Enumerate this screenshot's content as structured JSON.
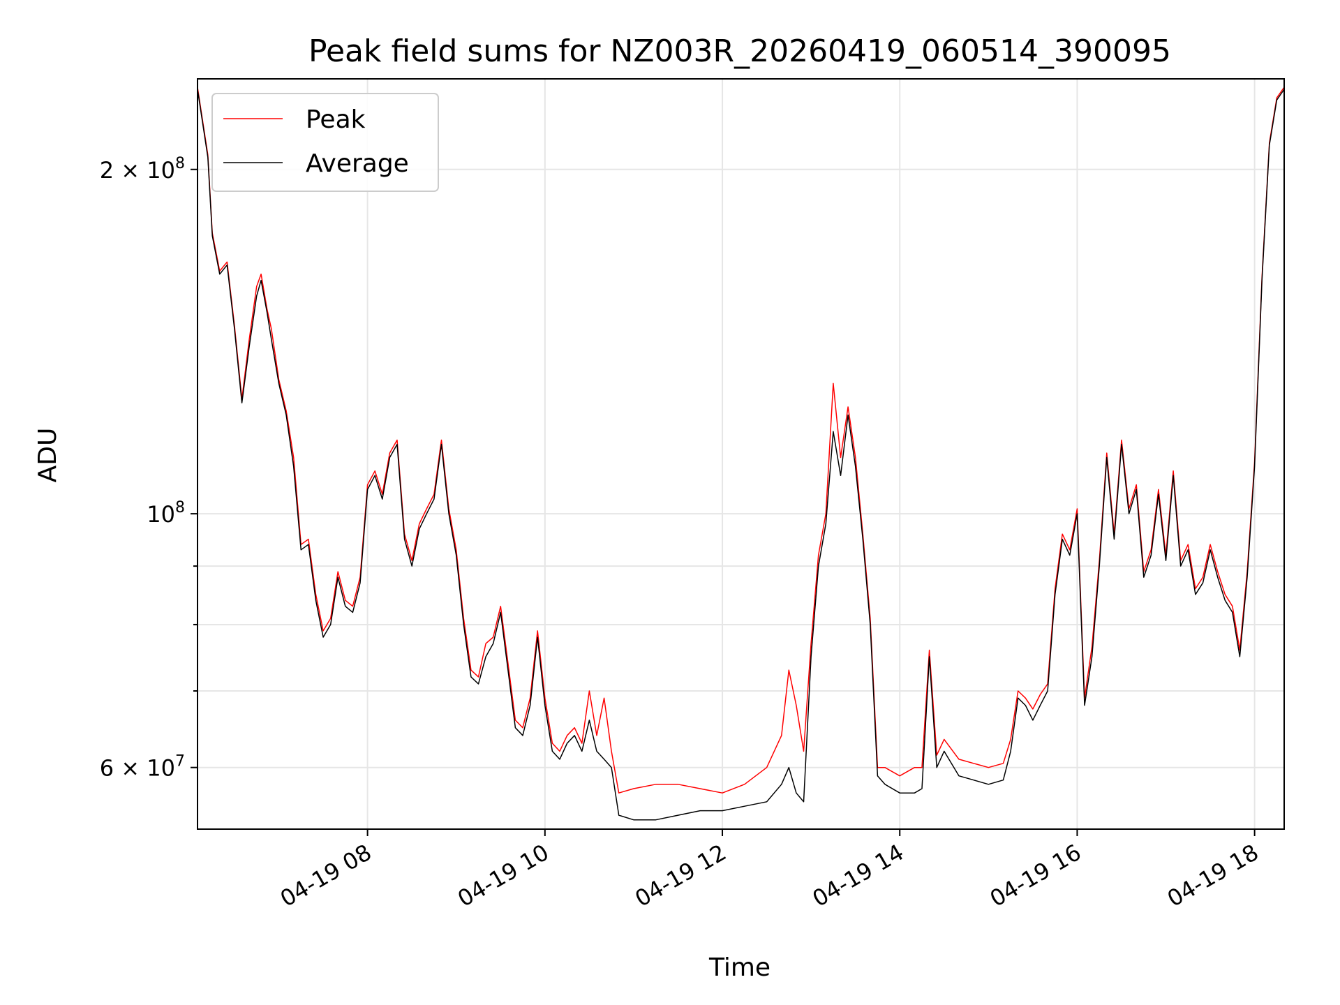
{
  "chart_data": {
    "type": "line",
    "title": "Peak field sums for NZ003R_20260419_060514_390095",
    "xlabel": "Time",
    "ylabel": "ADU",
    "yscale": "log",
    "ylim": [
      53000000,
      240000000
    ],
    "xlim": [
      "04-19 06:05",
      "04-19 18:20"
    ],
    "grid": true,
    "legend": {
      "position": "top-left",
      "entries": [
        "Peak",
        "Average"
      ]
    },
    "x_ticks": [
      "04-19 08",
      "04-19 10",
      "04-19 12",
      "04-19 14",
      "04-19 16",
      "04-19 18"
    ],
    "y_major_ticks": [
      {
        "value": 60000000,
        "label": "6 × 10",
        "exp": "7"
      },
      {
        "value": 100000000,
        "label": "10",
        "exp": "8"
      },
      {
        "value": 200000000,
        "label": "2 × 10",
        "exp": "8"
      }
    ],
    "y_minor_ticks": [
      70000000,
      80000000,
      90000000
    ],
    "series": [
      {
        "name": "Peak",
        "color": "#ff0000"
      },
      {
        "name": "Average",
        "color": "#000000"
      }
    ],
    "x": [
      "06:05",
      "06:12",
      "06:15",
      "06:20",
      "06:25",
      "06:30",
      "06:35",
      "06:40",
      "06:45",
      "06:48",
      "06:52",
      "06:55",
      "07:00",
      "07:05",
      "07:10",
      "07:15",
      "07:20",
      "07:25",
      "07:30",
      "07:35",
      "07:40",
      "07:45",
      "07:50",
      "07:55",
      "08:00",
      "08:05",
      "08:10",
      "08:15",
      "08:20",
      "08:25",
      "08:30",
      "08:35",
      "08:40",
      "08:45",
      "08:50",
      "08:55",
      "09:00",
      "09:05",
      "09:10",
      "09:15",
      "09:20",
      "09:25",
      "09:30",
      "09:35",
      "09:40",
      "09:45",
      "09:50",
      "09:55",
      "10:00",
      "10:05",
      "10:10",
      "10:15",
      "10:20",
      "10:25",
      "10:30",
      "10:35",
      "10:40",
      "10:45",
      "10:50",
      "11:00",
      "11:15",
      "11:30",
      "11:45",
      "12:00",
      "12:15",
      "12:30",
      "12:40",
      "12:45",
      "12:50",
      "12:55",
      "13:00",
      "13:05",
      "13:10",
      "13:15",
      "13:20",
      "13:25",
      "13:30",
      "13:35",
      "13:40",
      "13:45",
      "13:50",
      "14:00",
      "14:10",
      "14:15",
      "14:20",
      "14:25",
      "14:30",
      "14:40",
      "14:50",
      "15:00",
      "15:10",
      "15:15",
      "15:20",
      "15:25",
      "15:30",
      "15:35",
      "15:40",
      "15:45",
      "15:50",
      "15:55",
      "16:00",
      "16:05",
      "16:10",
      "16:15",
      "16:20",
      "16:25",
      "16:30",
      "16:35",
      "16:40",
      "16:45",
      "16:50",
      "16:55",
      "17:00",
      "17:05",
      "17:10",
      "17:15",
      "17:20",
      "17:25",
      "17:30",
      "17:35",
      "17:40",
      "17:45",
      "17:50",
      "17:55",
      "18:00",
      "18:05",
      "18:10",
      "18:15",
      "18:20"
    ],
    "average": [
      235000000,
      205000000,
      175000000,
      162000000,
      165000000,
      145000000,
      125000000,
      140000000,
      155000000,
      160000000,
      150000000,
      142000000,
      130000000,
      122000000,
      110000000,
      93000000,
      94000000,
      84000000,
      78000000,
      80000000,
      88000000,
      83000000,
      82000000,
      87000000,
      105000000,
      108000000,
      103000000,
      112000000,
      115000000,
      95000000,
      90000000,
      97000000,
      100000000,
      103000000,
      115000000,
      100000000,
      92000000,
      80000000,
      72000000,
      71000000,
      75000000,
      77000000,
      82000000,
      73000000,
      65000000,
      64000000,
      68000000,
      78000000,
      68000000,
      62000000,
      61000000,
      63000000,
      64000000,
      62000000,
      66000000,
      62000000,
      61000000,
      60000000,
      54500000,
      54000000,
      54000000,
      54500000,
      55000000,
      55000000,
      55500000,
      56000000,
      58000000,
      60000000,
      57000000,
      56000000,
      75000000,
      90000000,
      98000000,
      118000000,
      108000000,
      122000000,
      110000000,
      95000000,
      80000000,
      59000000,
      58000000,
      57000000,
      57000000,
      57500000,
      75000000,
      60000000,
      62000000,
      59000000,
      58500000,
      58000000,
      58500000,
      62000000,
      69000000,
      68000000,
      66000000,
      68000000,
      70000000,
      85000000,
      95000000,
      92000000,
      100000000,
      68000000,
      75000000,
      90000000,
      112000000,
      95000000,
      115000000,
      100000000,
      105000000,
      88000000,
      92000000,
      104000000,
      91000000,
      108000000,
      90000000,
      93000000,
      85000000,
      87000000,
      93000000,
      88000000,
      84000000,
      82000000,
      75000000,
      88000000,
      110000000,
      160000000,
      210000000,
      230000000,
      235000000
    ],
    "peak": [
      236000000,
      206000000,
      176000000,
      163000000,
      166000000,
      146000000,
      126000000,
      142000000,
      158000000,
      162000000,
      151000000,
      145000000,
      131000000,
      123000000,
      112000000,
      94000000,
      95000000,
      85000000,
      79000000,
      81000000,
      89000000,
      84000000,
      83000000,
      88000000,
      106000000,
      109000000,
      104000000,
      113000000,
      116000000,
      96000000,
      91000000,
      98000000,
      101000000,
      104000000,
      116000000,
      101000000,
      93000000,
      81000000,
      73000000,
      72000000,
      77000000,
      78000000,
      83000000,
      74000000,
      66000000,
      65000000,
      69000000,
      79000000,
      69000000,
      63000000,
      62000000,
      64000000,
      65000000,
      63000000,
      70000000,
      64000000,
      69000000,
      62000000,
      57000000,
      57500000,
      58000000,
      58000000,
      57500000,
      57000000,
      58000000,
      60000000,
      64000000,
      73000000,
      68000000,
      62000000,
      77000000,
      92000000,
      100000000,
      130000000,
      112000000,
      124000000,
      112000000,
      96000000,
      81000000,
      60000000,
      60000000,
      59000000,
      60000000,
      60000000,
      76000000,
      61500000,
      63500000,
      61000000,
      60500000,
      60000000,
      60500000,
      63500000,
      70000000,
      69000000,
      67500000,
      69500000,
      71000000,
      86000000,
      96000000,
      93000000,
      101000000,
      69000000,
      76500000,
      91000000,
      113000000,
      96000000,
      116000000,
      101000000,
      106000000,
      89000000,
      93000000,
      105000000,
      92000000,
      109000000,
      91000000,
      94000000,
      86000000,
      88000000,
      94000000,
      89000000,
      85000000,
      83000000,
      76000000,
      89000000,
      111000000,
      161000000,
      211000000,
      231000000,
      236000000
    ]
  }
}
